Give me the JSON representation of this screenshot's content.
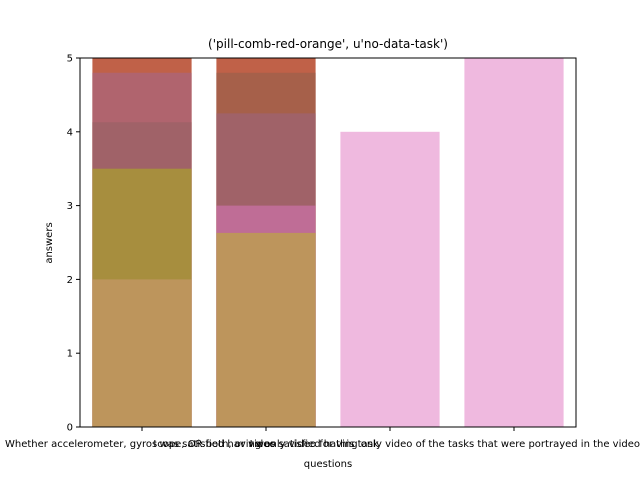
{
  "chart_data": {
    "type": "bar",
    "title": "('pill-comb-red-orange', u'no-data-task')",
    "xlabel": "questions",
    "ylabel": "answers",
    "ylim": [
      0,
      5
    ],
    "yticks": [
      "0",
      "1",
      "2",
      "3",
      "4",
      "5"
    ],
    "categories": [
      "Whether accelerometer, gyroscope, OR both, or video",
      "I was satisfied having only video for this task",
      "",
      ""
    ],
    "xtick_label_overlap": "I was satisfied having only video of the tasks that were portrayed in the video",
    "grid": false,
    "bars": [
      {
        "category": 0,
        "value": 5.0,
        "color": "#c06148",
        "opacity": 1.0
      },
      {
        "category": 0,
        "value": 4.8,
        "color": "#b0646e",
        "opacity": 1.0
      },
      {
        "category": 0,
        "value": 4.13,
        "color": "#a06268",
        "opacity": 1.0
      },
      {
        "category": 0,
        "value": 3.5,
        "color": "#a78e3e",
        "opacity": 1.0
      },
      {
        "category": 0,
        "value": 2.0,
        "color": "#bd955c",
        "opacity": 1.0
      },
      {
        "category": 1,
        "value": 5.0,
        "color": "#c06148",
        "opacity": 1.0
      },
      {
        "category": 1,
        "value": 4.8,
        "color": "#a6604a",
        "opacity": 1.0
      },
      {
        "category": 1,
        "value": 4.25,
        "color": "#a06268",
        "opacity": 1.0
      },
      {
        "category": 1,
        "value": 3.0,
        "color": "#bf6d96",
        "opacity": 1.0
      },
      {
        "category": 1,
        "value": 2.63,
        "color": "#bd955c",
        "opacity": 1.0
      },
      {
        "category": 2,
        "value": 4.0,
        "color": "#efb9df",
        "opacity": 1.0
      },
      {
        "category": 3,
        "value": 5.0,
        "color": "#efb9df",
        "opacity": 1.0
      }
    ]
  }
}
